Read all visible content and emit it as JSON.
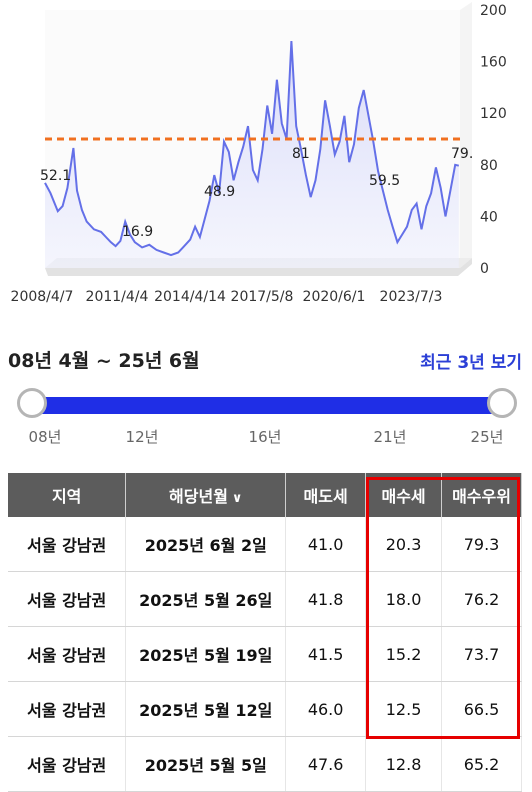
{
  "chart_data": {
    "type": "area",
    "x_tick_labels": [
      "2008/4/7",
      "2011/4/4",
      "2014/4/14",
      "2017/5/8",
      "2020/6/1",
      "2023/7/3"
    ],
    "y_ticks": [
      0,
      40,
      80,
      120,
      160,
      200
    ],
    "ylim": [
      0,
      200
    ],
    "reference_line": 100,
    "annotations": [
      "52.1",
      "16.9",
      "48.9",
      "81",
      "59.5",
      "79."
    ],
    "series": [
      {
        "points": [
          [
            2008.27,
            66
          ],
          [
            2008.5,
            58
          ],
          [
            2008.8,
            44
          ],
          [
            2009.0,
            48
          ],
          [
            2009.2,
            62
          ],
          [
            2009.45,
            93
          ],
          [
            2009.6,
            60
          ],
          [
            2009.8,
            45
          ],
          [
            2010.0,
            36
          ],
          [
            2010.3,
            30
          ],
          [
            2010.6,
            28
          ],
          [
            2010.8,
            24
          ],
          [
            2011.0,
            20
          ],
          [
            2011.2,
            17
          ],
          [
            2011.4,
            21
          ],
          [
            2011.6,
            36
          ],
          [
            2011.8,
            26
          ],
          [
            2012.0,
            20
          ],
          [
            2012.3,
            16
          ],
          [
            2012.6,
            18
          ],
          [
            2012.9,
            14
          ],
          [
            2013.2,
            12
          ],
          [
            2013.5,
            10
          ],
          [
            2013.8,
            12
          ],
          [
            2014.0,
            16
          ],
          [
            2014.3,
            22
          ],
          [
            2014.5,
            32
          ],
          [
            2014.7,
            24
          ],
          [
            2014.9,
            38
          ],
          [
            2015.1,
            52
          ],
          [
            2015.3,
            72
          ],
          [
            2015.5,
            58
          ],
          [
            2015.7,
            98
          ],
          [
            2015.9,
            90
          ],
          [
            2016.1,
            68
          ],
          [
            2016.3,
            82
          ],
          [
            2016.5,
            94
          ],
          [
            2016.7,
            110
          ],
          [
            2016.9,
            76
          ],
          [
            2017.1,
            68
          ],
          [
            2017.3,
            92
          ],
          [
            2017.5,
            126
          ],
          [
            2017.7,
            104
          ],
          [
            2017.9,
            146
          ],
          [
            2018.1,
            112
          ],
          [
            2018.3,
            100
          ],
          [
            2018.5,
            176
          ],
          [
            2018.7,
            110
          ],
          [
            2018.9,
            92
          ],
          [
            2019.1,
            72
          ],
          [
            2019.3,
            55
          ],
          [
            2019.5,
            68
          ],
          [
            2019.7,
            92
          ],
          [
            2019.9,
            130
          ],
          [
            2020.1,
            110
          ],
          [
            2020.3,
            88
          ],
          [
            2020.5,
            98
          ],
          [
            2020.7,
            118
          ],
          [
            2020.9,
            82
          ],
          [
            2021.1,
            96
          ],
          [
            2021.3,
            124
          ],
          [
            2021.5,
            138
          ],
          [
            2021.7,
            118
          ],
          [
            2021.9,
            98
          ],
          [
            2022.1,
            75
          ],
          [
            2022.3,
            60
          ],
          [
            2022.5,
            45
          ],
          [
            2022.7,
            32
          ],
          [
            2022.9,
            20
          ],
          [
            2023.1,
            26
          ],
          [
            2023.3,
            32
          ],
          [
            2023.5,
            45
          ],
          [
            2023.7,
            50
          ],
          [
            2023.9,
            30
          ],
          [
            2024.1,
            48
          ],
          [
            2024.3,
            58
          ],
          [
            2024.5,
            78
          ],
          [
            2024.7,
            62
          ],
          [
            2024.9,
            40
          ],
          [
            2025.1,
            60
          ],
          [
            2025.3,
            80
          ],
          [
            2025.45,
            79.3
          ]
        ]
      }
    ]
  },
  "range": {
    "title": "08년 4월 ~ 25년 6월",
    "recent_link": "최근 3년 보기",
    "tick_labels": [
      "08년",
      "12년",
      "16년",
      "21년",
      "25년"
    ]
  },
  "table": {
    "headers": [
      "지역",
      "해당년월",
      "매도세",
      "매수세",
      "매수우위"
    ],
    "sort_icon": "chevron-down-icon",
    "rows": [
      [
        "서울 강남권",
        "2025년 6월 2일",
        "41.0",
        "20.3",
        "79.3"
      ],
      [
        "서울 강남권",
        "2025년 5월 26일",
        "41.8",
        "18.0",
        "76.2"
      ],
      [
        "서울 강남권",
        "2025년 5월 19일",
        "41.5",
        "15.2",
        "73.7"
      ],
      [
        "서울 강남권",
        "2025년 5월 12일",
        "46.0",
        "12.5",
        "66.5"
      ],
      [
        "서울 강남권",
        "2025년 5월 5일",
        "47.6",
        "12.8",
        "65.2"
      ]
    ]
  },
  "colors": {
    "line": "#6470e8",
    "reference": "#f07020",
    "slider": "#1f2ee6",
    "highlight": "#e60000",
    "header_bg": "#5c5c5c"
  }
}
